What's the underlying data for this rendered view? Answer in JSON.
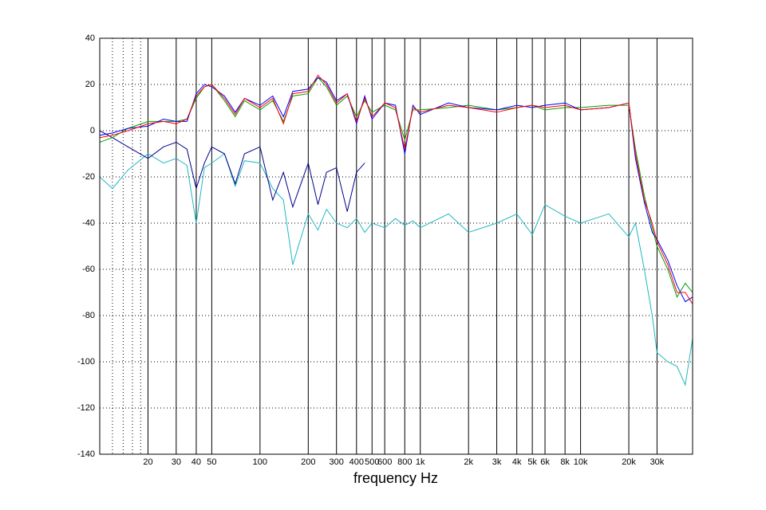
{
  "chart_data": {
    "type": "line",
    "xlabel": "frequency  Hz",
    "xscale": "log",
    "xlim": [
      10,
      50000
    ],
    "ylim": [
      -140,
      40
    ],
    "yticks": [
      -140,
      -120,
      -100,
      -80,
      -60,
      -40,
      -20,
      0,
      20,
      40
    ],
    "xticks": [
      20,
      30,
      40,
      50,
      100,
      200,
      300,
      400,
      500,
      600,
      800,
      {
        "value": 1000,
        "label": "1k"
      },
      {
        "value": 2000,
        "label": "2k"
      },
      {
        "value": 3000,
        "label": "3k"
      },
      {
        "value": 4000,
        "label": "4k"
      },
      {
        "value": 5000,
        "label": "5k"
      },
      {
        "value": 6000,
        "label": "6k"
      },
      {
        "value": 8000,
        "label": "8k"
      },
      {
        "value": 10000,
        "label": "10k"
      },
      {
        "value": 20000,
        "label": "20k"
      },
      {
        "value": 30000,
        "label": "30k"
      }
    ],
    "xminor": [
      12,
      14,
      16,
      18
    ],
    "grid": true,
    "x": [
      10,
      12,
      15,
      20,
      25,
      30,
      35,
      40,
      45,
      50,
      60,
      70,
      80,
      100,
      120,
      140,
      160,
      200,
      230,
      260,
      300,
      350,
      400,
      450,
      500,
      600,
      700,
      800,
      900,
      1000,
      1500,
      2000,
      3000,
      4000,
      5000,
      6000,
      8000,
      10000,
      15000,
      20000,
      22000,
      25000,
      28000,
      30000,
      35000,
      40000,
      45000,
      50000
    ],
    "series": [
      {
        "color": "#00a000",
        "values": [
          -5,
          -3,
          1,
          4,
          4,
          4,
          5,
          14,
          19,
          20,
          13,
          6,
          13,
          9,
          13,
          4,
          15,
          16,
          23,
          19,
          11,
          15,
          6,
          13,
          8,
          11,
          9,
          -4,
          9,
          9,
          10,
          11,
          9,
          10,
          11,
          9,
          10,
          10,
          11,
          11,
          -8,
          -28,
          -42,
          -50,
          -60,
          -72,
          -66,
          -70
        ]
      },
      {
        "color": "#0000ff",
        "values": [
          -2,
          -1,
          1,
          2,
          5,
          4,
          4,
          16,
          20,
          19,
          15,
          8,
          14,
          11,
          15,
          6,
          17,
          18,
          23,
          21,
          13,
          16,
          3,
          15,
          5,
          12,
          11,
          -10,
          11,
          7,
          12,
          10,
          9,
          11,
          10,
          11,
          12,
          9,
          10,
          12,
          -12,
          -31,
          -44,
          -47,
          -56,
          -67,
          -74,
          -72
        ]
      },
      {
        "color": "#ff0000",
        "values": [
          -3,
          -2,
          0,
          3,
          4,
          3,
          5,
          15,
          19,
          20,
          14,
          7,
          14,
          10,
          14,
          3,
          16,
          17,
          24,
          20,
          12,
          16,
          4,
          14,
          6,
          12,
          10,
          -8,
          10,
          8,
          11,
          10,
          8,
          10,
          11,
          10,
          11,
          9,
          10,
          12,
          -10,
          -30,
          -40,
          -48,
          -58,
          -70,
          -70,
          -75
        ]
      },
      {
        "color": "#00008b",
        "values": [
          0,
          -3,
          -7,
          -12,
          -7,
          -5,
          -8,
          -25,
          -14,
          -7,
          -10,
          -23,
          -10,
          -7,
          -30,
          -18,
          -33,
          -14,
          -32,
          -18,
          -16,
          -35,
          -18,
          -14,
          null,
          null,
          null,
          null,
          null,
          null,
          null,
          null,
          null,
          null,
          null,
          null,
          null,
          null,
          null,
          null,
          null,
          null,
          null,
          null,
          null,
          null,
          null,
          null
        ]
      },
      {
        "color": "#20b8c0",
        "values": [
          -20,
          -25,
          -17,
          -10,
          -14,
          -12,
          -15,
          -40,
          -16,
          -14,
          -10,
          -24,
          -13,
          -14,
          -25,
          -30,
          -58,
          -36,
          -43,
          -34,
          -40,
          -42,
          -38,
          -44,
          -40,
          -42,
          -38,
          -41,
          -39,
          -42,
          -36,
          -44,
          -40,
          -36,
          -45,
          -32,
          -37,
          -40,
          -36,
          -46,
          -40,
          -60,
          -80,
          -96,
          -100,
          -102,
          -110,
          -90
        ]
      }
    ]
  }
}
